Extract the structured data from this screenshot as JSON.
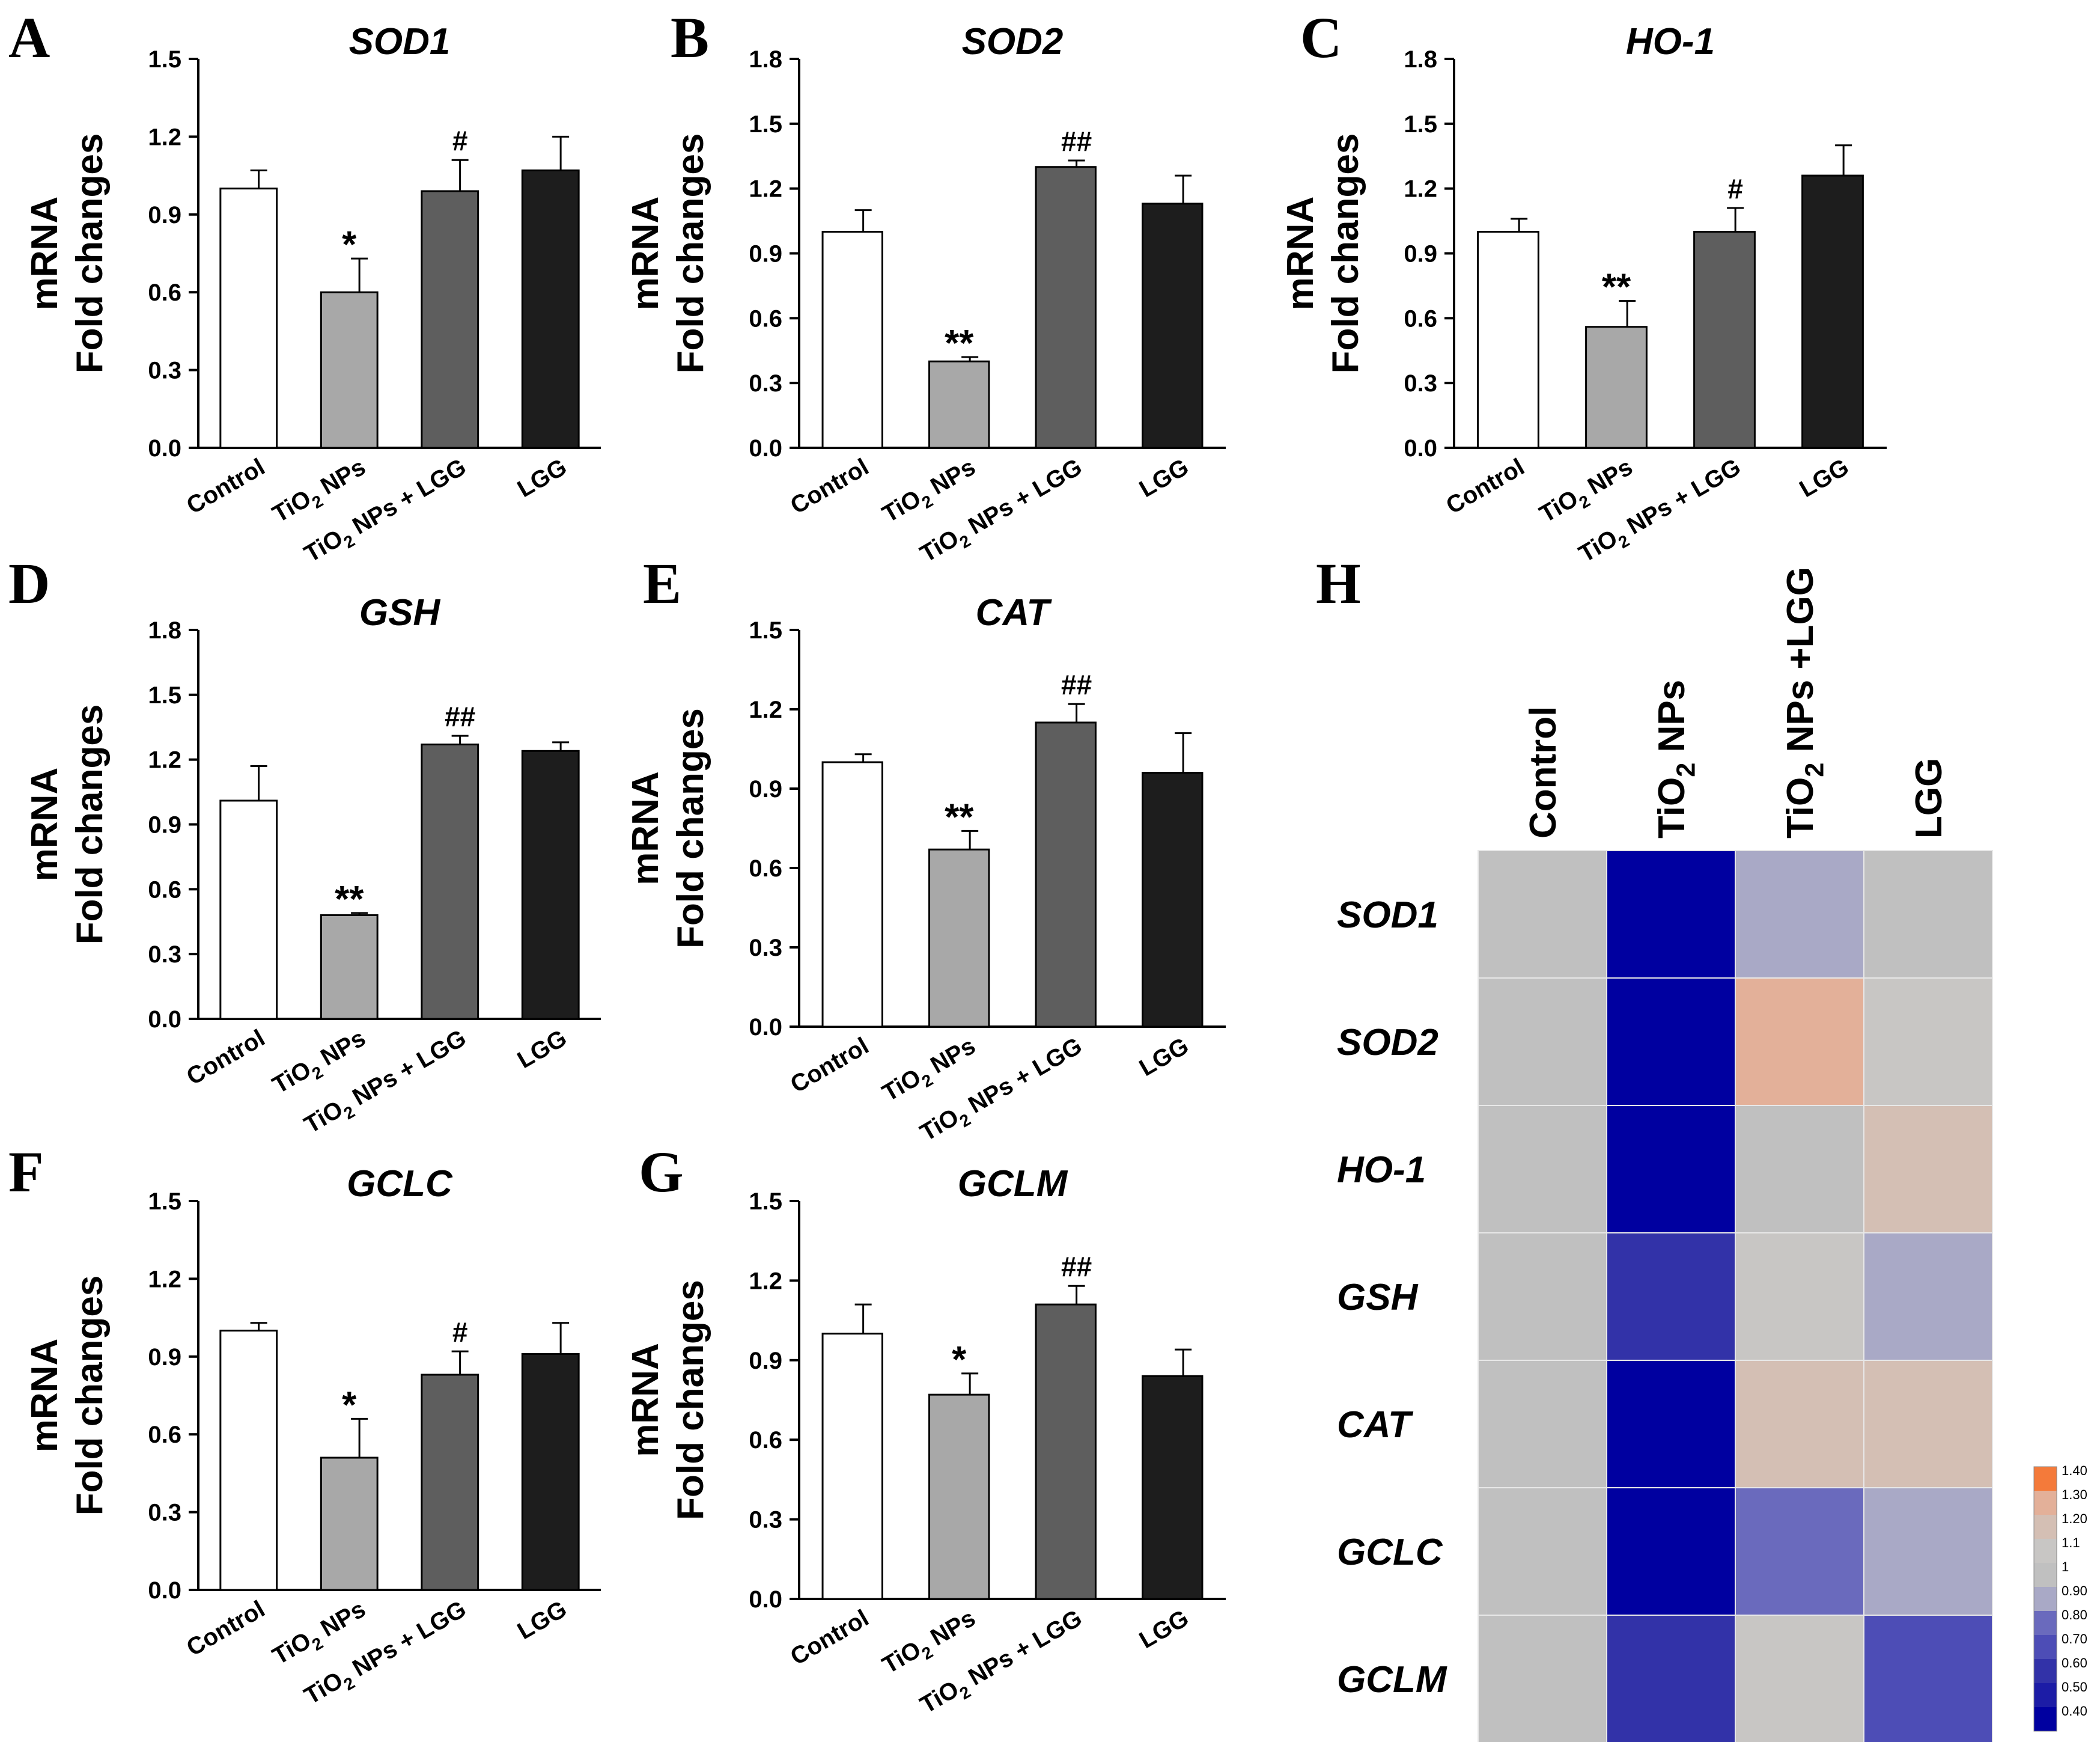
{
  "chart_data": [
    {
      "type": "bar",
      "panel": "A",
      "title": "SOD1",
      "ylabel_line1": "mRNA",
      "ylabel_line2": "Fold changes",
      "categories": [
        "Control",
        "TiO₂ NPs",
        "TiO₂ NPs + LGG",
        "LGG"
      ],
      "values": [
        1.0,
        0.6,
        0.99,
        1.07
      ],
      "errors": [
        0.07,
        0.13,
        0.12,
        0.13
      ],
      "annotations": [
        "",
        "*",
        "#",
        ""
      ],
      "yticks": [
        "0.0",
        "0.3",
        "0.6",
        "0.9",
        "1.2",
        "1.5"
      ],
      "ylim": [
        0,
        1.5
      ]
    },
    {
      "type": "bar",
      "panel": "B",
      "title": "SOD2",
      "ylabel_line1": "mRNA",
      "ylabel_line2": "Fold changes",
      "categories": [
        "Control",
        "TiO₂ NPs",
        "TiO₂ NPs + LGG",
        "LGG"
      ],
      "values": [
        1.0,
        0.4,
        1.3,
        1.13
      ],
      "errors": [
        0.1,
        0.02,
        0.03,
        0.13
      ],
      "annotations": [
        "",
        "**",
        "##",
        ""
      ],
      "yticks": [
        "0.0",
        "0.3",
        "0.6",
        "0.9",
        "1.2",
        "1.5",
        "1.8"
      ],
      "ylim": [
        0,
        1.8
      ]
    },
    {
      "type": "bar",
      "panel": "C",
      "title": "HO-1",
      "ylabel_line1": "mRNA",
      "ylabel_line2": "Fold changes",
      "categories": [
        "Control",
        "TiO₂ NPs",
        "TiO₂ NPs + LGG",
        "LGG"
      ],
      "values": [
        1.0,
        0.56,
        1.0,
        1.26
      ],
      "errors": [
        0.06,
        0.12,
        0.11,
        0.14
      ],
      "annotations": [
        "",
        "**",
        "#",
        ""
      ],
      "yticks": [
        "0.0",
        "0.3",
        "0.6",
        "0.9",
        "1.2",
        "1.5",
        "1.8"
      ],
      "ylim": [
        0,
        1.8
      ]
    },
    {
      "type": "bar",
      "panel": "D",
      "title": "GSH",
      "ylabel_line1": "mRNA",
      "ylabel_line2": "Fold changes",
      "categories": [
        "Control",
        "TiO₂ NPs",
        "TiO₂ NPs + LGG",
        "LGG"
      ],
      "values": [
        1.01,
        0.48,
        1.27,
        1.24
      ],
      "errors": [
        0.16,
        0.01,
        0.04,
        0.04
      ],
      "annotations": [
        "",
        "**",
        "##",
        ""
      ],
      "yticks": [
        "0.0",
        "0.3",
        "0.6",
        "0.9",
        "1.2",
        "1.5",
        "1.8"
      ],
      "ylim": [
        0,
        1.8
      ]
    },
    {
      "type": "bar",
      "panel": "E",
      "title": "CAT",
      "ylabel_line1": "mRNA",
      "ylabel_line2": "Fold changes",
      "categories": [
        "Control",
        "TiO₂ NPs",
        "TiO₂ NPs + LGG",
        "LGG"
      ],
      "values": [
        1.0,
        0.67,
        1.15,
        0.96
      ],
      "errors": [
        0.03,
        0.07,
        0.07,
        0.15
      ],
      "annotations": [
        "",
        "**",
        "##",
        ""
      ],
      "yticks": [
        "0.0",
        "0.3",
        "0.6",
        "0.9",
        "1.2",
        "1.5"
      ],
      "ylim": [
        0,
        1.5
      ]
    },
    {
      "type": "bar",
      "panel": "F",
      "title": "GCLC",
      "ylabel_line1": "mRNA",
      "ylabel_line2": "Fold changes",
      "categories": [
        "Control",
        "TiO₂ NPs",
        "TiO₂ NPs + LGG",
        "LGG"
      ],
      "values": [
        1.0,
        0.51,
        0.83,
        0.91
      ],
      "errors": [
        0.03,
        0.15,
        0.09,
        0.12
      ],
      "annotations": [
        "",
        "*",
        "#",
        ""
      ],
      "yticks": [
        "0.0",
        "0.3",
        "0.6",
        "0.9",
        "1.2",
        "1.5"
      ],
      "ylim": [
        0,
        1.5
      ]
    },
    {
      "type": "bar",
      "panel": "G",
      "title": "GCLM",
      "ylabel_line1": "mRNA",
      "ylabel_line2": "Fold changes",
      "categories": [
        "Control",
        "TiO₂ NPs",
        "TiO₂ NPs + LGG",
        "LGG"
      ],
      "values": [
        1.0,
        0.77,
        1.11,
        0.84
      ],
      "errors": [
        0.11,
        0.08,
        0.07,
        0.1
      ],
      "annotations": [
        "",
        "*",
        "##",
        ""
      ],
      "yticks": [
        "0.0",
        "0.3",
        "0.6",
        "0.9",
        "1.2",
        "1.5"
      ],
      "ylim": [
        0,
        1.5
      ]
    },
    {
      "type": "heatmap",
      "panel": "H",
      "columns": [
        "Control",
        "TiO₂ NPs",
        "TiO₂ NPs +LGG",
        "LGG"
      ],
      "rows": [
        "SOD1",
        "SOD2",
        "HO-1",
        "GSH",
        "CAT",
        "GCLC",
        "GCLM"
      ],
      "values": [
        [
          1.0,
          0.4,
          0.92,
          1.0
        ],
        [
          1.0,
          0.4,
          1.25,
          1.12
        ],
        [
          1.0,
          0.42,
          1.0,
          1.2
        ],
        [
          1.0,
          0.55,
          1.15,
          0.92
        ],
        [
          1.0,
          0.4,
          1.18,
          1.18
        ],
        [
          1.0,
          0.42,
          0.75,
          0.9
        ],
        [
          1.0,
          0.62,
          1.12,
          0.72
        ]
      ],
      "legend_ticks": [
        "1.40",
        "1.30",
        "1.20",
        "1.1",
        "1",
        "0.90",
        "0.80",
        "0.70",
        "0.60",
        "0.50",
        "0.40"
      ],
      "legend_colors": [
        "#f47a3a",
        "#e3b099",
        "#d4bfb4",
        "#c8c6c4",
        "#c0c0c0",
        "#a9a9c6",
        "#6a6abd",
        "#4d4db6",
        "#3232a8",
        "#1c1ca6",
        "#0000a0"
      ]
    }
  ]
}
